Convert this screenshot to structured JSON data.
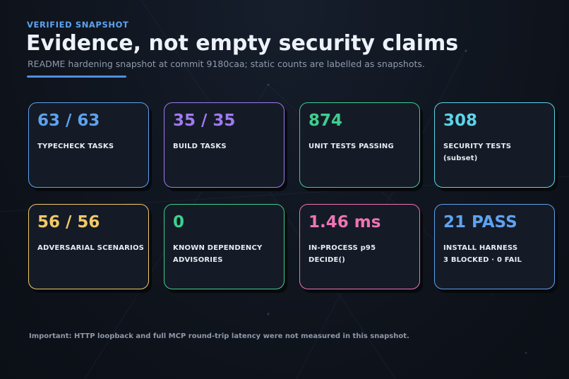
{
  "header": {
    "kicker": "VERIFIED SNAPSHOT",
    "title": "Evidence, not empty security claims",
    "subtitle": "README hardening snapshot at commit 9180caa; static counts are labelled as snapshots."
  },
  "cards": [
    {
      "value": "63 / 63",
      "label_lines": [
        "TYPECHECK TASKS"
      ],
      "accent": "#5ea2f0"
    },
    {
      "value": "35 / 35",
      "label_lines": [
        "BUILD TASKS"
      ],
      "accent": "#a07af0"
    },
    {
      "value": "874",
      "label_lines": [
        "UNIT TESTS PASSING"
      ],
      "accent": "#3ecf8e"
    },
    {
      "value": "308",
      "label_lines": [
        "SECURITY TESTS",
        "(subset)"
      ],
      "accent": "#5ed3e8"
    },
    {
      "value": "56 / 56",
      "label_lines": [
        "ADVERSARIAL SCENARIOS"
      ],
      "accent": "#f2c86a"
    },
    {
      "value": "0",
      "label_lines": [
        "KNOWN DEPENDENCY",
        "ADVISORIES"
      ],
      "accent": "#3ecf8e"
    },
    {
      "value": "1.46 ms",
      "label_lines": [
        "IN-PROCESS p95",
        "DECIDE()"
      ],
      "accent": "#ef74b4"
    },
    {
      "value": "21 PASS",
      "label_lines": [
        "INSTALL HARNESS",
        "3 BLOCKED · 0 FAIL"
      ],
      "accent": "#5ea2f0"
    }
  ],
  "footnote": "Important: HTTP loopback and full MCP round-trip latency were not measured in this snapshot."
}
